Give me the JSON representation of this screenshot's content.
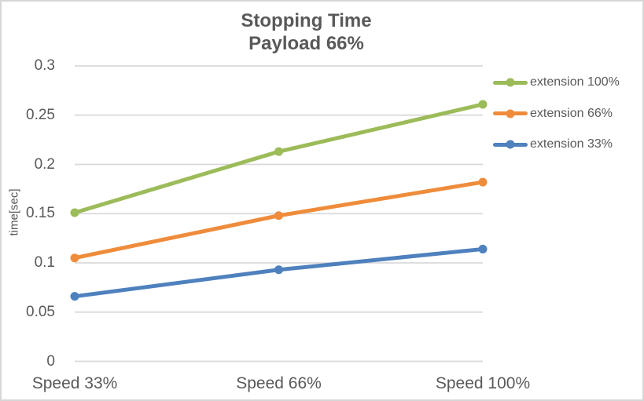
{
  "window": {
    "background": "#ffffff",
    "border_color": "#d6d6d6",
    "text_color": "#595959",
    "gridline_color": "#d9d9d9"
  },
  "chart_data": {
    "type": "line",
    "title": "Stopping Time",
    "subtitle": "Payload 66%",
    "categories": [
      "Speed 33%",
      "Speed 66%",
      "Speed 100%"
    ],
    "series": [
      {
        "name": "extension 100%",
        "color": "#9cbb59",
        "values": [
          0.151,
          0.213,
          0.261
        ]
      },
      {
        "name": "extension 66%",
        "color": "#ef8c3b",
        "values": [
          0.105,
          0.148,
          0.182
        ]
      },
      {
        "name": "extension 33%",
        "color": "#4e81bd",
        "values": [
          0.066,
          0.093,
          0.114
        ]
      }
    ],
    "xlabel": "",
    "ylabel": "time[sec]",
    "ylim": [
      0,
      0.3
    ],
    "y_ticks": [
      {
        "value": 0,
        "label": "0"
      },
      {
        "value": 0.05,
        "label": "0.05"
      },
      {
        "value": 0.1,
        "label": "0.1"
      },
      {
        "value": 0.15,
        "label": "0.15"
      },
      {
        "value": 0.2,
        "label": "0.2"
      },
      {
        "value": 0.25,
        "label": "0.25"
      },
      {
        "value": 0.3,
        "label": "0.3"
      }
    ],
    "grid": true,
    "legend_position": "right",
    "marker": "circle"
  }
}
